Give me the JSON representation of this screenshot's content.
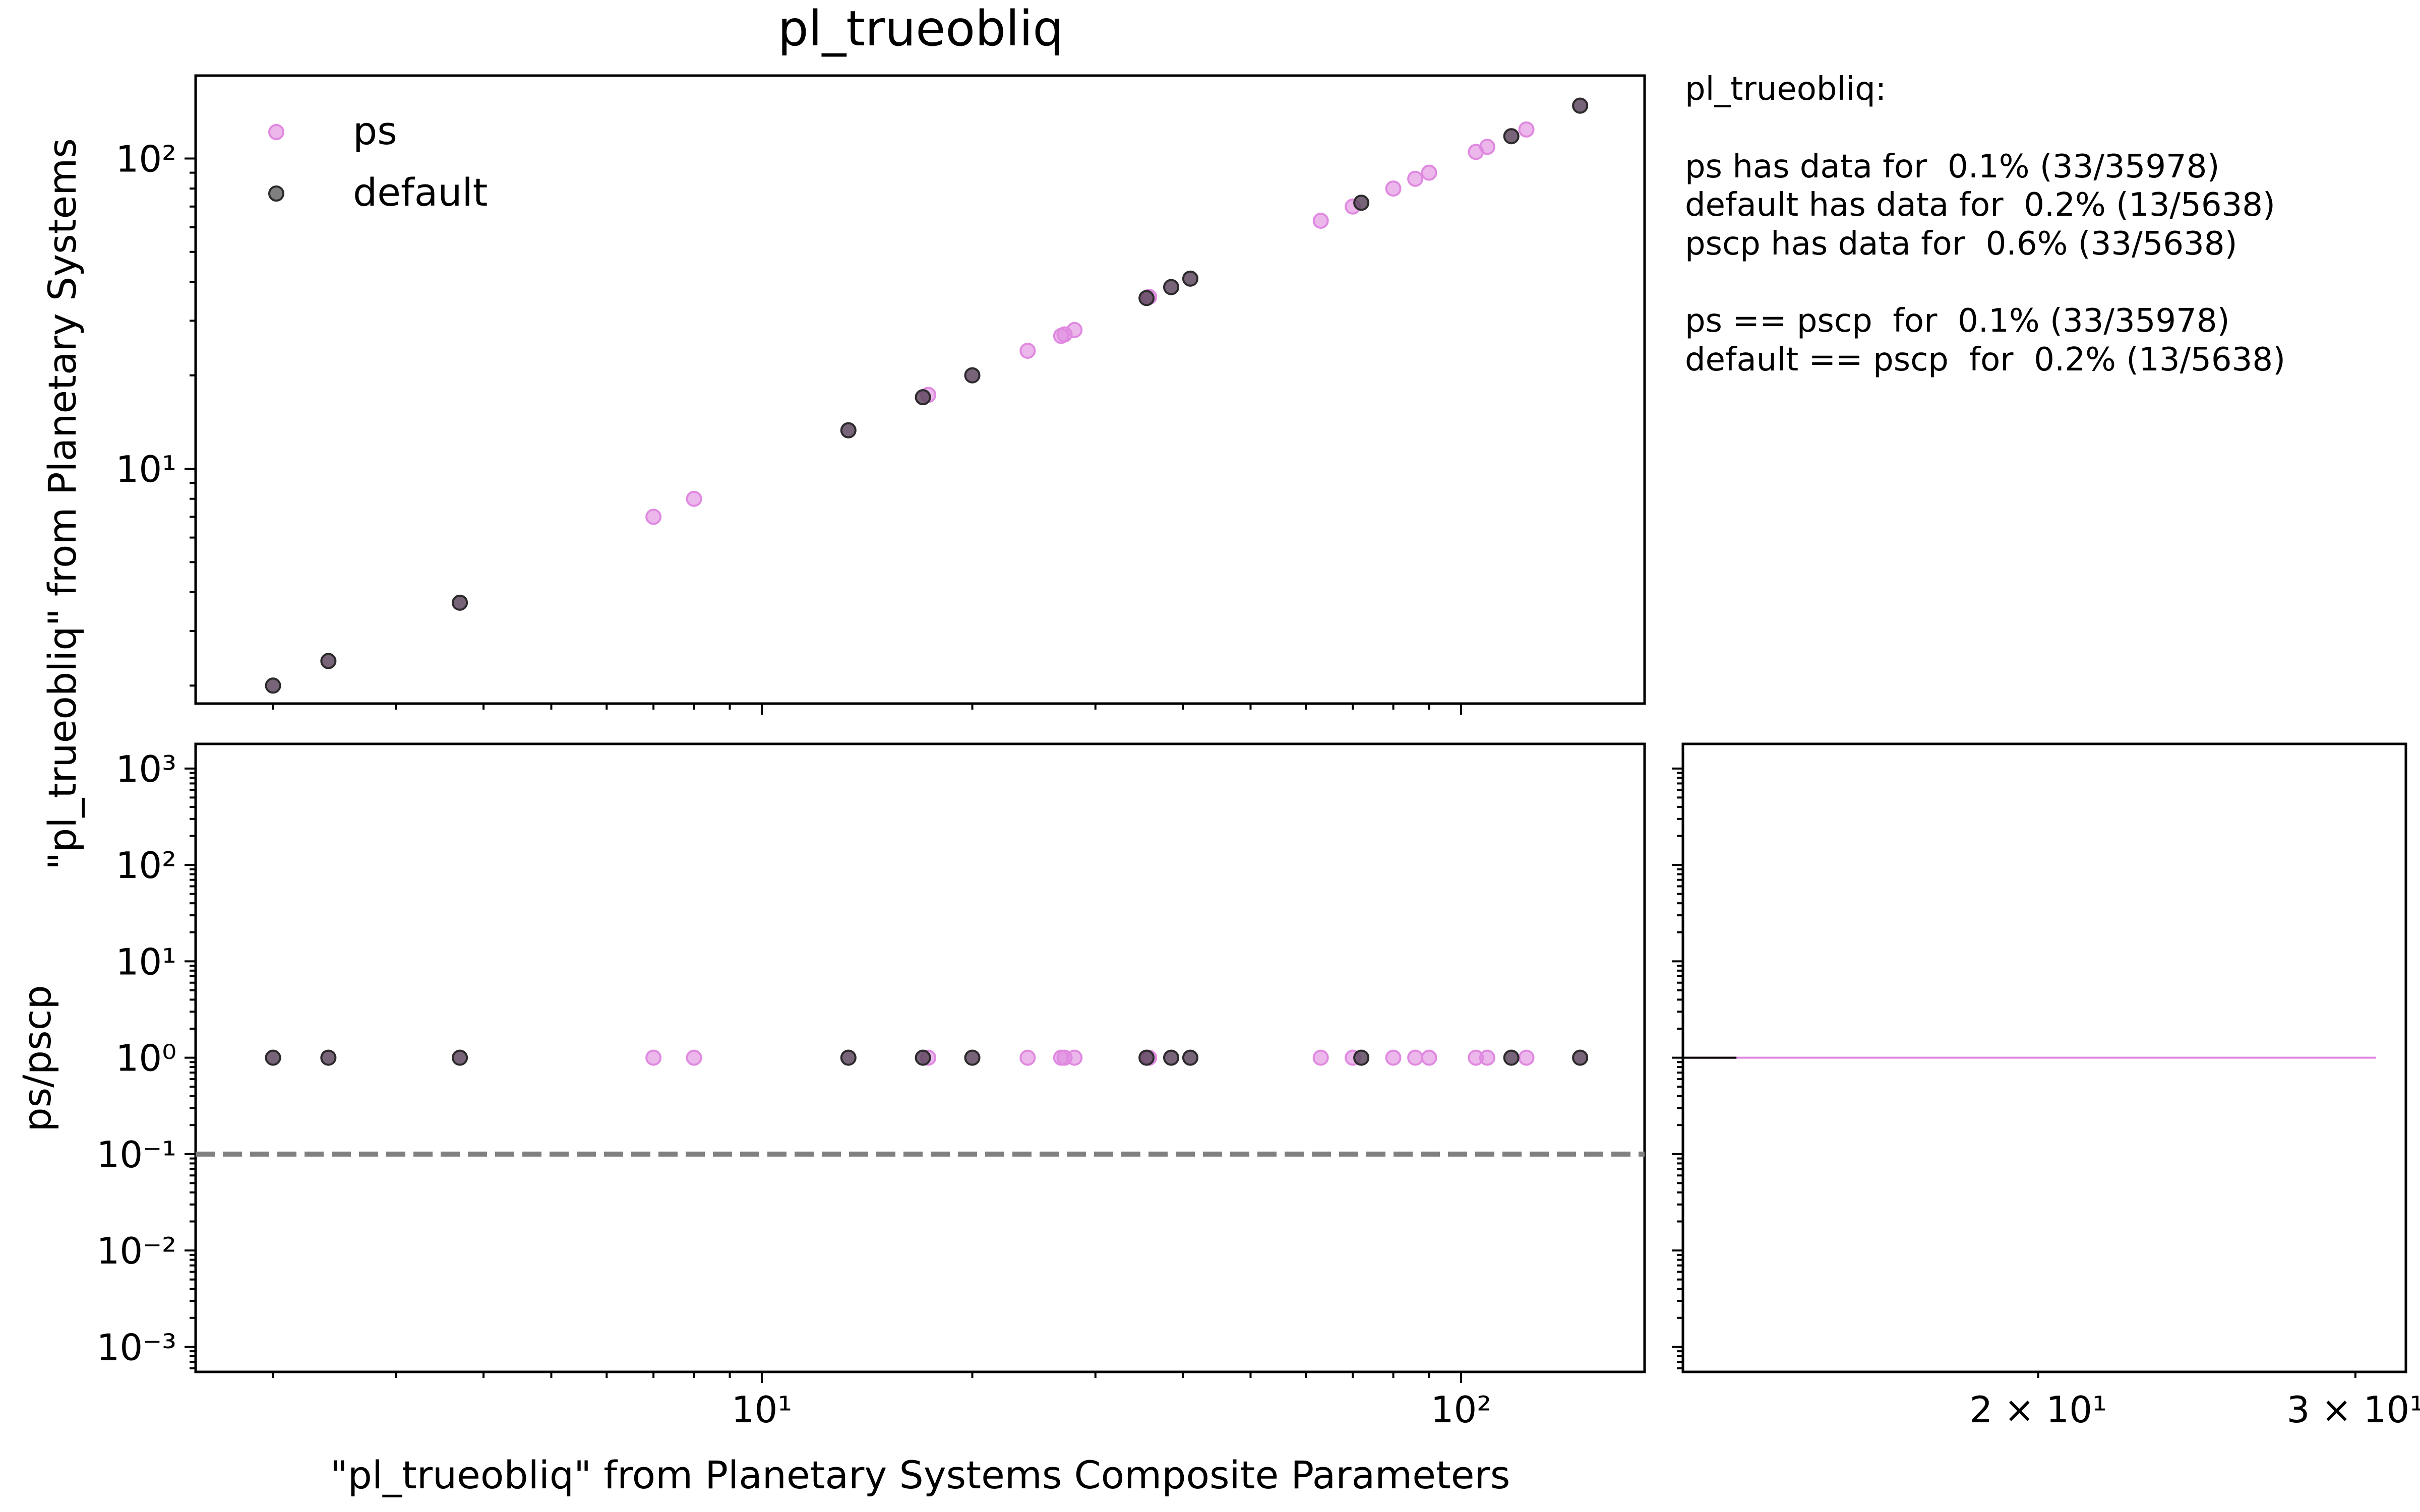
{
  "figure_title": "pl_trueobliq",
  "colors": {
    "ps": "#e089e0",
    "default": "#2b2b2b",
    "ref_line": "#808080",
    "axes": "#000000",
    "hist_ps": "#e089e0",
    "hist_default": "#000000"
  },
  "info_lines": [
    "pl_trueobliq:",
    "",
    "ps has data for  0.1% (33/35978)",
    "default has data for  0.2% (13/5638)",
    "pscp has data for  0.6% (33/5638)",
    "",
    "ps == pscp  for  0.1% (33/35978)",
    "default == pscp  for  0.2% (13/5638)"
  ],
  "chart_data": [
    {
      "type": "scatter",
      "title": "pl_trueobliq",
      "xlabel": "",
      "ylabel": "\"pl_trueobliq\" from Planetary Systems",
      "xscale": "log",
      "yscale": "log",
      "xlim": [
        1.55,
        183
      ],
      "ylim": [
        1.75,
        185
      ],
      "x_ticks": [
        10,
        100
      ],
      "x_tick_labels": [
        "10¹",
        "10²"
      ],
      "y_ticks": [
        10,
        100
      ],
      "y_tick_labels": [
        "10¹",
        "10²"
      ],
      "legend": "upper-left",
      "series": [
        {
          "name": "ps",
          "color": "#e089e0",
          "x": [
            2,
            2.4,
            3.7,
            7,
            8,
            13.3,
            17,
            17.3,
            20,
            24,
            26.8,
            27.1,
            28,
            35.5,
            35.8,
            38.5,
            41,
            63,
            70,
            72,
            80,
            86,
            90,
            105,
            109,
            118,
            124,
            148
          ],
          "y": [
            2,
            2.4,
            3.7,
            7,
            8,
            13.3,
            17,
            17.3,
            20,
            24,
            26.8,
            27.1,
            28,
            35.5,
            35.8,
            38.5,
            41,
            63,
            70,
            72,
            80,
            86,
            90,
            105,
            109,
            118,
            124,
            148
          ]
        },
        {
          "name": "default",
          "color": "#2b2b2b",
          "x": [
            2,
            2.4,
            3.7,
            13.3,
            17,
            20,
            35.5,
            38.5,
            41,
            72,
            118,
            148
          ],
          "y": [
            2,
            2.4,
            3.7,
            13.3,
            17,
            20,
            35.5,
            38.5,
            41,
            72,
            118,
            148
          ]
        }
      ]
    },
    {
      "type": "scatter",
      "xlabel": "\"pl_trueobliq\" from Planetary Systems Composite Parameters",
      "ylabel": "ps/pscp",
      "xscale": "log",
      "yscale": "log",
      "xlim": [
        1.55,
        183
      ],
      "ylim": [
        0.00055,
        1800
      ],
      "x_ticks": [
        10,
        100
      ],
      "x_tick_labels": [
        "10¹",
        "10²"
      ],
      "y_ticks": [
        0.001,
        0.01,
        0.1,
        1,
        10,
        100,
        1000
      ],
      "y_tick_labels": [
        "10⁻³",
        "10⁻²",
        "10⁻¹",
        "10⁰",
        "10¹",
        "10²",
        "10³"
      ],
      "reference_line": 0.1,
      "series": [
        {
          "name": "ps",
          "color": "#e089e0",
          "x": [
            2,
            2.4,
            3.7,
            7,
            8,
            13.3,
            17,
            17.3,
            20,
            24,
            26.8,
            27.1,
            28,
            35.5,
            35.8,
            38.5,
            41,
            63,
            70,
            72,
            80,
            86,
            90,
            105,
            109,
            118,
            124,
            148
          ],
          "y": [
            1,
            1,
            1,
            1,
            1,
            1,
            1,
            1,
            1,
            1,
            1,
            1,
            1,
            1,
            1,
            1,
            1,
            1,
            1,
            1,
            1,
            1,
            1,
            1,
            1,
            1,
            1,
            1
          ]
        },
        {
          "name": "default",
          "color": "#2b2b2b",
          "x": [
            2,
            2.4,
            3.7,
            13.3,
            17,
            20,
            35.5,
            38.5,
            41,
            72,
            118,
            148
          ],
          "y": [
            1,
            1,
            1,
            1,
            1,
            1,
            1,
            1,
            1,
            1,
            1,
            1
          ]
        }
      ]
    },
    {
      "type": "histogram",
      "orientation": "horizontal",
      "xscale": "log",
      "yscale": "log",
      "xlim": [
        12.7,
        32
      ],
      "ylim": [
        0.00055,
        1800
      ],
      "x_ticks": [
        20,
        30
      ],
      "x_tick_labels": [
        "2 × 10¹",
        "3 × 10¹"
      ],
      "series": [
        {
          "name": "ps",
          "color": "#e089e0",
          "bin_value": 1,
          "count": 30.8
        },
        {
          "name": "default",
          "color": "#000000",
          "bin_value": 1,
          "count": 13.6
        }
      ]
    }
  ]
}
